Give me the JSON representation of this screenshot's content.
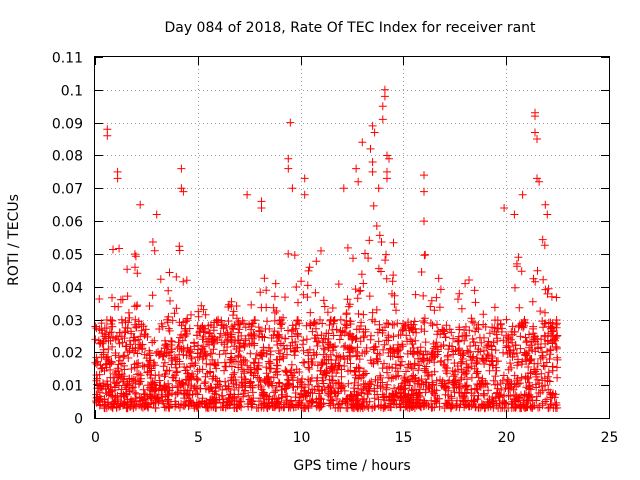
{
  "chart_data": {
    "type": "scatter",
    "title": "Day 084 of 2018, Rate Of TEC Index for receiver rant",
    "xlabel": "GPS time / hours",
    "ylabel": "ROTI / TECUs",
    "xlim": [
      0,
      25
    ],
    "ylim": [
      0,
      0.11
    ],
    "x_ticks": [
      0,
      5,
      10,
      15,
      20,
      25
    ],
    "y_ticks": [
      0,
      0.01,
      0.02,
      0.03,
      0.04,
      0.05,
      0.06,
      0.07,
      0.08,
      0.09,
      0.1,
      0.11
    ],
    "grid": true,
    "grid_style": "dotted",
    "marker": "+",
    "color": "#ff0000",
    "data_x_range": [
      0,
      22.5
    ],
    "bulk_y_range": [
      0.003,
      0.03
    ],
    "envelope": [
      [
        0.0,
        0.055
      ],
      [
        0.5,
        0.05
      ],
      [
        1.0,
        0.06
      ],
      [
        1.5,
        0.045
      ],
      [
        2.0,
        0.055
      ],
      [
        2.5,
        0.045
      ],
      [
        3.0,
        0.06
      ],
      [
        3.5,
        0.05
      ],
      [
        4.0,
        0.055
      ],
      [
        4.5,
        0.045
      ],
      [
        5.0,
        0.04
      ],
      [
        5.5,
        0.03
      ],
      [
        6.0,
        0.028
      ],
      [
        6.5,
        0.035
      ],
      [
        7.0,
        0.04
      ],
      [
        7.5,
        0.04
      ],
      [
        8.0,
        0.045
      ],
      [
        8.5,
        0.04
      ],
      [
        9.0,
        0.045
      ],
      [
        9.5,
        0.055
      ],
      [
        10.0,
        0.05
      ],
      [
        10.5,
        0.055
      ],
      [
        11.0,
        0.06
      ],
      [
        11.5,
        0.055
      ],
      [
        12.0,
        0.05
      ],
      [
        12.5,
        0.055
      ],
      [
        13.0,
        0.06
      ],
      [
        13.5,
        0.065
      ],
      [
        14.0,
        0.07
      ],
      [
        14.5,
        0.055
      ],
      [
        15.0,
        0.045
      ],
      [
        15.5,
        0.04
      ],
      [
        16.0,
        0.05
      ],
      [
        16.5,
        0.05
      ],
      [
        17.0,
        0.045
      ],
      [
        17.5,
        0.05
      ],
      [
        18.0,
        0.045
      ],
      [
        18.5,
        0.04
      ],
      [
        19.0,
        0.035
      ],
      [
        19.5,
        0.04
      ],
      [
        20.0,
        0.045
      ],
      [
        20.5,
        0.05
      ],
      [
        21.0,
        0.045
      ],
      [
        21.5,
        0.06
      ],
      [
        22.0,
        0.055
      ],
      [
        22.5,
        0.035
      ]
    ],
    "outliers": [
      {
        "x": 0.6,
        "y": 0.088
      },
      {
        "x": 0.6,
        "y": 0.086
      },
      {
        "x": 1.1,
        "y": 0.075
      },
      {
        "x": 1.1,
        "y": 0.073
      },
      {
        "x": 2.2,
        "y": 0.065
      },
      {
        "x": 3.0,
        "y": 0.062
      },
      {
        "x": 4.2,
        "y": 0.076
      },
      {
        "x": 4.2,
        "y": 0.07
      },
      {
        "x": 4.3,
        "y": 0.069
      },
      {
        "x": 7.4,
        "y": 0.068
      },
      {
        "x": 8.1,
        "y": 0.066
      },
      {
        "x": 8.1,
        "y": 0.064
      },
      {
        "x": 9.5,
        "y": 0.09
      },
      {
        "x": 9.4,
        "y": 0.079
      },
      {
        "x": 9.4,
        "y": 0.076
      },
      {
        "x": 9.6,
        "y": 0.07
      },
      {
        "x": 10.2,
        "y": 0.073
      },
      {
        "x": 10.2,
        "y": 0.068
      },
      {
        "x": 12.1,
        "y": 0.07
      },
      {
        "x": 12.7,
        "y": 0.076
      },
      {
        "x": 12.8,
        "y": 0.072
      },
      {
        "x": 13.0,
        "y": 0.084
      },
      {
        "x": 13.5,
        "y": 0.089
      },
      {
        "x": 13.6,
        "y": 0.087
      },
      {
        "x": 13.4,
        "y": 0.082
      },
      {
        "x": 13.5,
        "y": 0.078
      },
      {
        "x": 13.5,
        "y": 0.075
      },
      {
        "x": 14.1,
        "y": 0.1
      },
      {
        "x": 14.1,
        "y": 0.098
      },
      {
        "x": 14.0,
        "y": 0.095
      },
      {
        "x": 14.0,
        "y": 0.091
      },
      {
        "x": 14.2,
        "y": 0.08
      },
      {
        "x": 14.3,
        "y": 0.079
      },
      {
        "x": 14.2,
        "y": 0.075
      },
      {
        "x": 14.2,
        "y": 0.073
      },
      {
        "x": 13.8,
        "y": 0.07
      },
      {
        "x": 16.0,
        "y": 0.074
      },
      {
        "x": 16.0,
        "y": 0.069
      },
      {
        "x": 16.0,
        "y": 0.06
      },
      {
        "x": 19.9,
        "y": 0.064
      },
      {
        "x": 20.4,
        "y": 0.062
      },
      {
        "x": 20.8,
        "y": 0.068
      },
      {
        "x": 21.4,
        "y": 0.093
      },
      {
        "x": 21.4,
        "y": 0.092
      },
      {
        "x": 21.4,
        "y": 0.087
      },
      {
        "x": 21.5,
        "y": 0.085
      },
      {
        "x": 21.5,
        "y": 0.073
      },
      {
        "x": 21.6,
        "y": 0.072
      },
      {
        "x": 21.9,
        "y": 0.065
      },
      {
        "x": 22.0,
        "y": 0.062
      }
    ]
  }
}
